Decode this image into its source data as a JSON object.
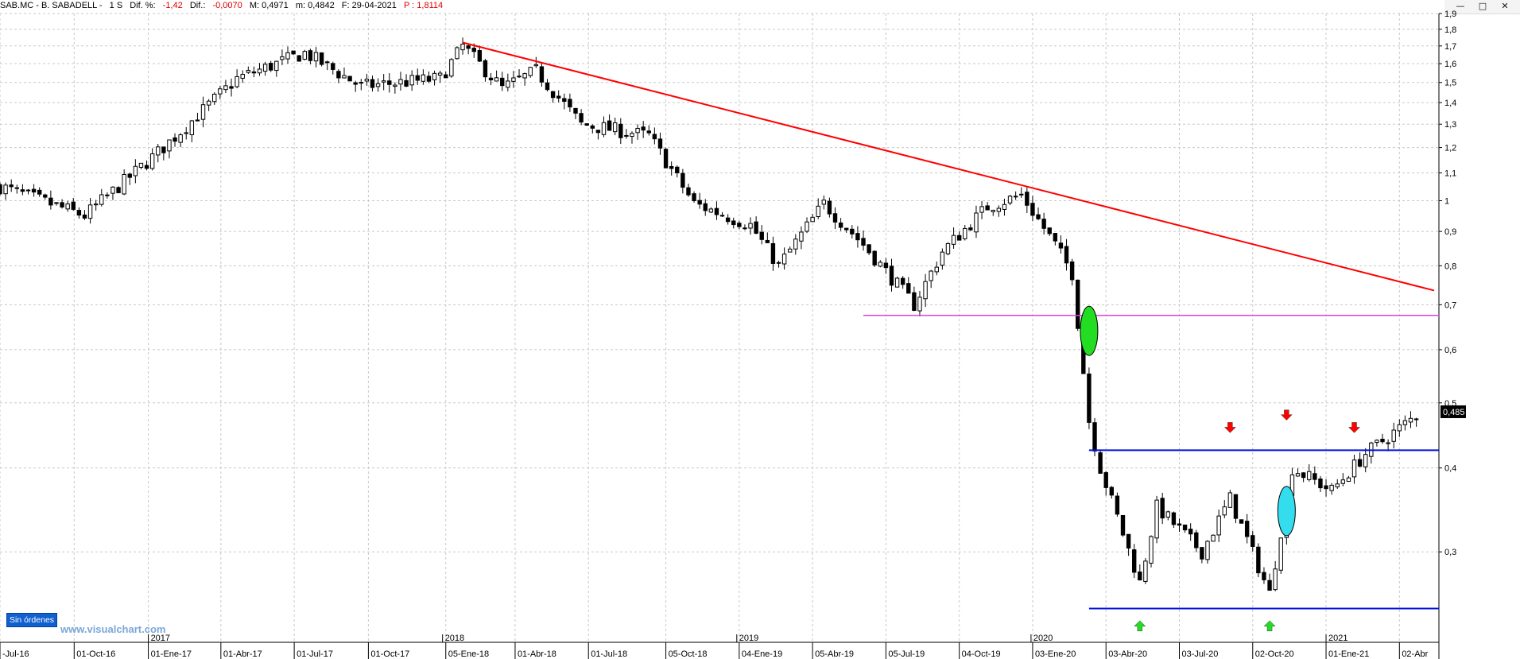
{
  "header": {
    "symbol": "SAB.MC - B. SABADELL -",
    "period": "1 S",
    "dif_pct_label": "Dif. %:",
    "dif_pct_value": "-1,42",
    "dif_label": "Dif.:",
    "dif_value": "-0,0070",
    "max_label": "M: 0,4971",
    "min_label": "m: 0,4842",
    "date_label": "F: 29-04-2021",
    "price_label": "P : 1,8114"
  },
  "window_controls": {
    "minimize": "—",
    "maximize": "□",
    "close": "✕"
  },
  "status": {
    "orders": "Sin órdenes"
  },
  "watermark": "www.visualchart.com",
  "colors": {
    "trendline": "#ff0000",
    "support_magenta": "#e040e0",
    "channel_blue": "#0010e0",
    "marker_green": "#22dd22",
    "marker_cyan": "#33ddee",
    "arrow_down": "#ff0000",
    "arrow_up": "#22dd22",
    "last_price_bg": "#000000"
  },
  "chart_data": {
    "type": "candlestick",
    "scale": "log",
    "frequency": "weekly",
    "x_range": [
      "2016-07-01",
      "2021-04-29"
    ],
    "ylim": [
      0.22,
      1.9
    ],
    "y_ticks": [
      "1,9",
      "1,8",
      "1,7",
      "1,6",
      "1,5",
      "1,4",
      "1,3",
      "1,2",
      "1,1",
      "1",
      "0,9",
      "0,8",
      "0,7",
      "0,6",
      "0,5",
      "0,4",
      "0,3"
    ],
    "y_tick_values": [
      1.9,
      1.8,
      1.7,
      1.6,
      1.5,
      1.4,
      1.3,
      1.2,
      1.1,
      1.0,
      0.9,
      0.8,
      0.7,
      0.6,
      0.5,
      0.4,
      0.3
    ],
    "x_ticks": [
      "-Jul-16",
      "01-Oct-16",
      "01-Ene-17",
      "01-Abr-17",
      "01-Jul-17",
      "01-Oct-17",
      "05-Ene-18",
      "01-Abr-18",
      "01-Jul-18",
      "05-Oct-18",
      "04-Ene-19",
      "05-Abr-19",
      "05-Jul-19",
      "04-Oct-19",
      "03-Ene-20",
      "03-Abr-20",
      "03-Jul-20",
      "02-Oct-20",
      "01-Ene-21",
      "02-Abr"
    ],
    "x_tick_dates": [
      "2016-07-01",
      "2016-10-01",
      "2017-01-01",
      "2017-04-01",
      "2017-07-01",
      "2017-10-01",
      "2018-01-05",
      "2018-04-01",
      "2018-07-01",
      "2018-10-05",
      "2019-01-04",
      "2019-04-05",
      "2019-07-05",
      "2019-10-04",
      "2020-01-03",
      "2020-04-03",
      "2020-07-03",
      "2020-10-02",
      "2021-01-01",
      "2021-04-02"
    ],
    "year_labels": [
      "2017",
      "2018",
      "2019",
      "2020",
      "2021"
    ],
    "year_label_dates": [
      "2017-01-01",
      "2018-01-01",
      "2019-01-01",
      "2020-01-01",
      "2021-01-01"
    ],
    "last_price": "0,485",
    "last_price_value": 0.485,
    "key_points": [
      {
        "date": "2016-07-01",
        "price": 1.05
      },
      {
        "date": "2016-10-14",
        "price": 0.95
      },
      {
        "date": "2017-01-13",
        "price": 1.18
      },
      {
        "date": "2017-04-21",
        "price": 1.52
      },
      {
        "date": "2017-07-14",
        "price": 1.66
      },
      {
        "date": "2017-09-22",
        "price": 1.48
      },
      {
        "date": "2017-12-29",
        "price": 1.52
      },
      {
        "date": "2018-01-26",
        "price": 1.7
      },
      {
        "date": "2018-03-16",
        "price": 1.47
      },
      {
        "date": "2018-04-27",
        "price": 1.56
      },
      {
        "date": "2018-06-22",
        "price": 1.3
      },
      {
        "date": "2018-09-14",
        "price": 1.25
      },
      {
        "date": "2018-11-09",
        "price": 0.99
      },
      {
        "date": "2019-01-18",
        "price": 0.92
      },
      {
        "date": "2019-02-22",
        "price": 0.8
      },
      {
        "date": "2019-04-19",
        "price": 0.99
      },
      {
        "date": "2019-06-07",
        "price": 0.86
      },
      {
        "date": "2019-08-09",
        "price": 0.7
      },
      {
        "date": "2019-09-13",
        "price": 0.84
      },
      {
        "date": "2019-11-08",
        "price": 0.98
      },
      {
        "date": "2019-12-20",
        "price": 1.02
      },
      {
        "date": "2020-01-31",
        "price": 0.86
      },
      {
        "date": "2020-02-21",
        "price": 0.78
      },
      {
        "date": "2020-03-13",
        "price": 0.47
      },
      {
        "date": "2020-03-27",
        "price": 0.4
      },
      {
        "date": "2020-05-15",
        "price": 0.27
      },
      {
        "date": "2020-06-05",
        "price": 0.35
      },
      {
        "date": "2020-07-31",
        "price": 0.3
      },
      {
        "date": "2020-09-04",
        "price": 0.36
      },
      {
        "date": "2020-10-23",
        "price": 0.26
      },
      {
        "date": "2020-11-20",
        "price": 0.4
      },
      {
        "date": "2021-01-08",
        "price": 0.37
      },
      {
        "date": "2021-02-19",
        "price": 0.42
      },
      {
        "date": "2021-04-29",
        "price": 0.485
      }
    ],
    "trendline": {
      "from": {
        "date": "2018-01-26",
        "price": 1.72
      },
      "to": {
        "date": "2021-05-21",
        "price": 0.735
      }
    },
    "hlines": [
      {
        "price": 0.675,
        "from": "2019-06-07",
        "to": "2021-05-21",
        "role": "support_magenta"
      },
      {
        "price": 0.425,
        "from": "2020-03-13",
        "to": "2021-05-21",
        "role": "channel_blue"
      },
      {
        "price": 0.247,
        "from": "2020-03-13",
        "to": "2021-05-21",
        "role": "channel_blue"
      }
    ],
    "ellipses": [
      {
        "date": "2020-03-13",
        "price": 0.64,
        "role": "marker_green"
      },
      {
        "date": "2020-11-13",
        "price": 0.345,
        "role": "marker_cyan"
      }
    ],
    "arrows": [
      {
        "date": "2020-09-04",
        "price": 0.455,
        "dir": "down"
      },
      {
        "date": "2020-11-13",
        "price": 0.475,
        "dir": "down"
      },
      {
        "date": "2021-02-05",
        "price": 0.455,
        "dir": "down"
      },
      {
        "date": "2020-05-15",
        "price": 0.235,
        "dir": "up"
      },
      {
        "date": "2020-10-23",
        "price": 0.235,
        "dir": "up"
      }
    ]
  }
}
